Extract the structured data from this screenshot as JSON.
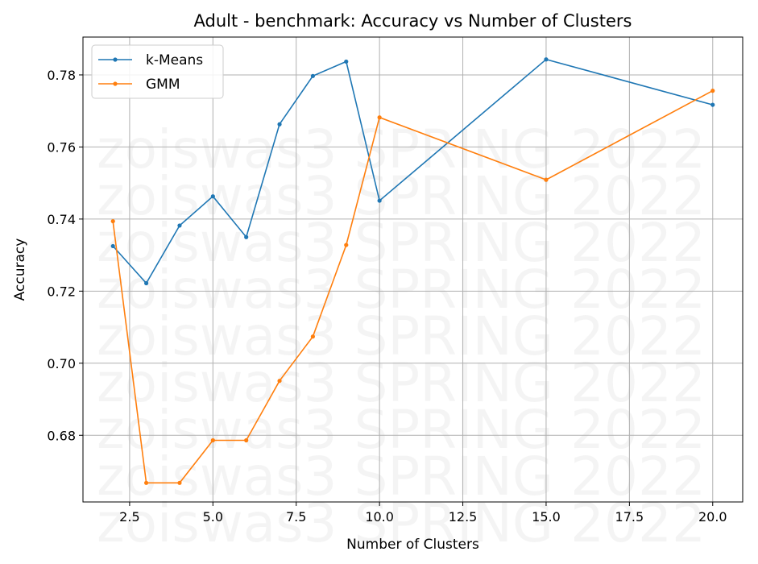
{
  "chart_data": {
    "type": "line",
    "title": "Adult - benchmark: Accuracy vs Number of Clusters",
    "xlabel": "Number of Clusters",
    "ylabel": "Accuracy",
    "xlim": [
      1.1,
      20.9
    ],
    "ylim": [
      0.6615,
      0.7905
    ],
    "xticks": [
      2.5,
      5.0,
      7.5,
      10.0,
      12.5,
      15.0,
      17.5,
      20.0
    ],
    "xtick_labels": [
      "2.5",
      "5.0",
      "7.5",
      "10.0",
      "12.5",
      "15.0",
      "17.5",
      "20.0"
    ],
    "yticks": [
      0.68,
      0.7,
      0.72,
      0.74,
      0.76,
      0.78
    ],
    "ytick_labels": [
      "0.68",
      "0.70",
      "0.72",
      "0.74",
      "0.76",
      "0.78"
    ],
    "grid": true,
    "legend": "top-left",
    "watermark": "zoiswas3 SPRING 2022",
    "x": [
      2,
      3,
      4,
      5,
      6,
      7,
      8,
      9,
      10,
      15,
      20
    ],
    "series": [
      {
        "name": "k-Means",
        "color": "#1f77b4",
        "values": [
          0.7325,
          0.7222,
          0.7382,
          0.7463,
          0.735,
          0.7663,
          0.7797,
          0.7837,
          0.7451,
          0.7843,
          0.7717
        ]
      },
      {
        "name": "GMM",
        "color": "#ff7f0e",
        "values": [
          0.7394,
          0.6668,
          0.6668,
          0.6786,
          0.6786,
          0.6951,
          0.7074,
          0.7328,
          0.7682,
          0.7509,
          0.7756
        ]
      }
    ]
  }
}
